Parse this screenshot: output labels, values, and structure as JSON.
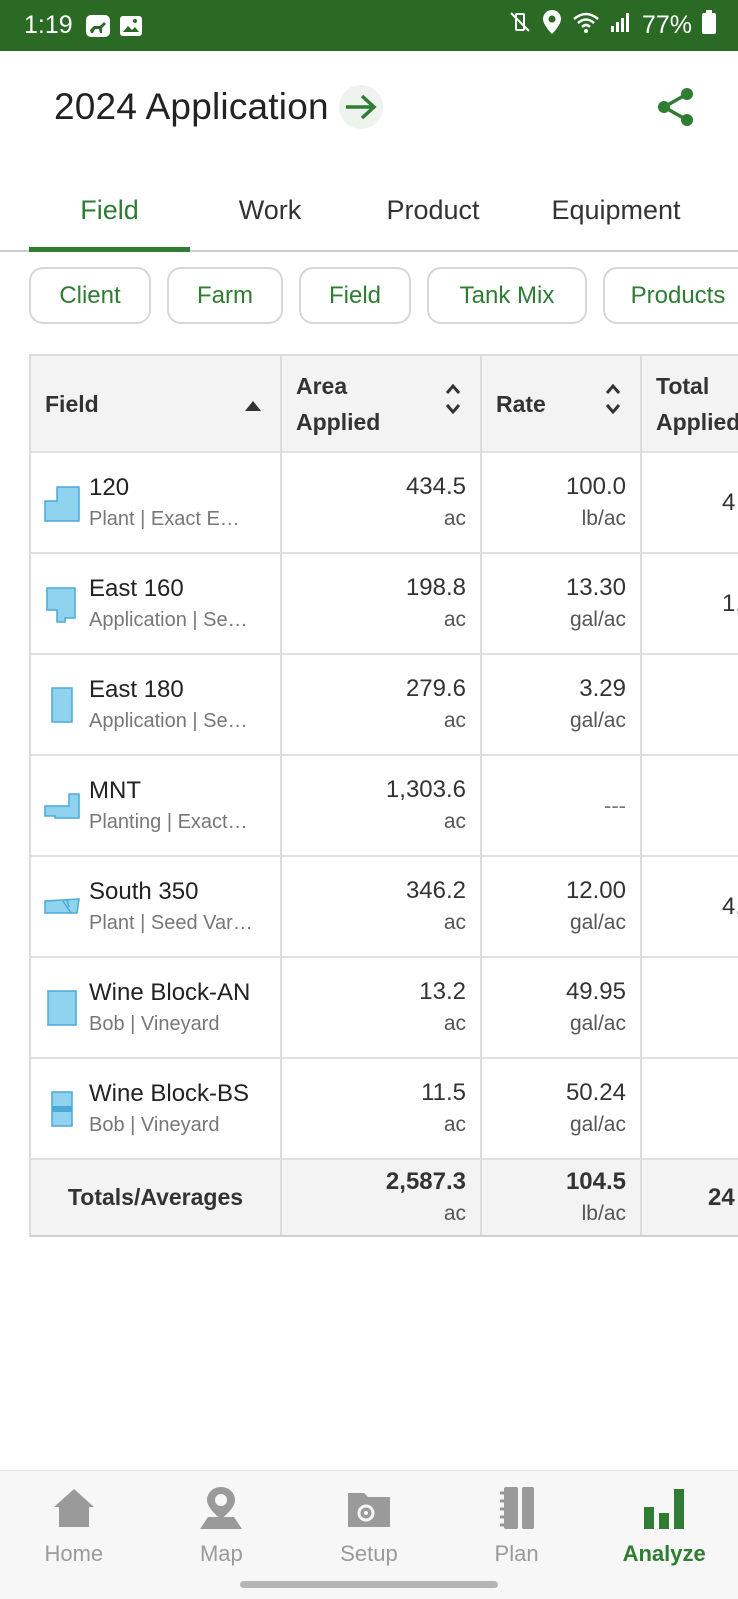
{
  "status": {
    "time": "1:19",
    "battery": "77%",
    "icons": [
      "deer-icon",
      "image-icon",
      "mute-vibrate-icon",
      "location-icon",
      "wifi-icon",
      "signal-icon",
      "battery-icon"
    ]
  },
  "header": {
    "title": "2024 Application",
    "arrow_icon": "arrow-right-icon",
    "share_icon": "share-icon"
  },
  "tabs": [
    {
      "label": "Field",
      "active": true
    },
    {
      "label": "Work",
      "active": false
    },
    {
      "label": "Product",
      "active": false
    },
    {
      "label": "Equipment",
      "active": false
    }
  ],
  "chips": [
    "Client",
    "Farm",
    "Field",
    "Tank Mix",
    "Products"
  ],
  "table": {
    "columns": [
      "Field",
      "Area Applied",
      "Rate",
      "Total Applied"
    ],
    "rows": [
      {
        "name": "120",
        "sub": "Plant | Exact E…",
        "area": "434.5",
        "area_unit": "ac",
        "rate": "100.0",
        "rate_unit": "lb/ac",
        "total": "4"
      },
      {
        "name": "East 160",
        "sub": "Application | Se…",
        "area": "198.8",
        "area_unit": "ac",
        "rate": "13.30",
        "rate_unit": "gal/ac",
        "total": "1,"
      },
      {
        "name": "East 180",
        "sub": "Application | Se…",
        "area": "279.6",
        "area_unit": "ac",
        "rate": "3.29",
        "rate_unit": "gal/ac",
        "total": ""
      },
      {
        "name": "MNT",
        "sub": "Planting | Exact…",
        "area": "1,303.6",
        "area_unit": "ac",
        "rate": "---",
        "rate_unit": "",
        "total": ""
      },
      {
        "name": "South 350",
        "sub": "Plant | Seed Var…",
        "area": "346.2",
        "area_unit": "ac",
        "rate": "12.00",
        "rate_unit": "gal/ac",
        "total": "4,"
      },
      {
        "name": "Wine Block-AN",
        "sub": "Bob | Vineyard",
        "area": "13.2",
        "area_unit": "ac",
        "rate": "49.95",
        "rate_unit": "gal/ac",
        "total": ""
      },
      {
        "name": "Wine Block-BS",
        "sub": "Bob | Vineyard",
        "area": "11.5",
        "area_unit": "ac",
        "rate": "50.24",
        "rate_unit": "gal/ac",
        "total": ""
      }
    ],
    "totals": {
      "label": "Totals/Averages",
      "area": "2,587.3",
      "area_unit": "ac",
      "rate": "104.5",
      "rate_unit": "lb/ac",
      "total": "24"
    }
  },
  "nav": [
    {
      "label": "Home",
      "icon": "home-icon",
      "active": false
    },
    {
      "label": "Map",
      "icon": "map-pin-icon",
      "active": false
    },
    {
      "label": "Setup",
      "icon": "setup-folder-icon",
      "active": false
    },
    {
      "label": "Plan",
      "icon": "plan-notebook-icon",
      "active": false
    },
    {
      "label": "Analyze",
      "icon": "analyze-bars-icon",
      "active": true
    }
  ],
  "colors": {
    "accent": "#2e7d32",
    "statusbar": "#2b6a24",
    "field_shape": "#7fcdec"
  }
}
